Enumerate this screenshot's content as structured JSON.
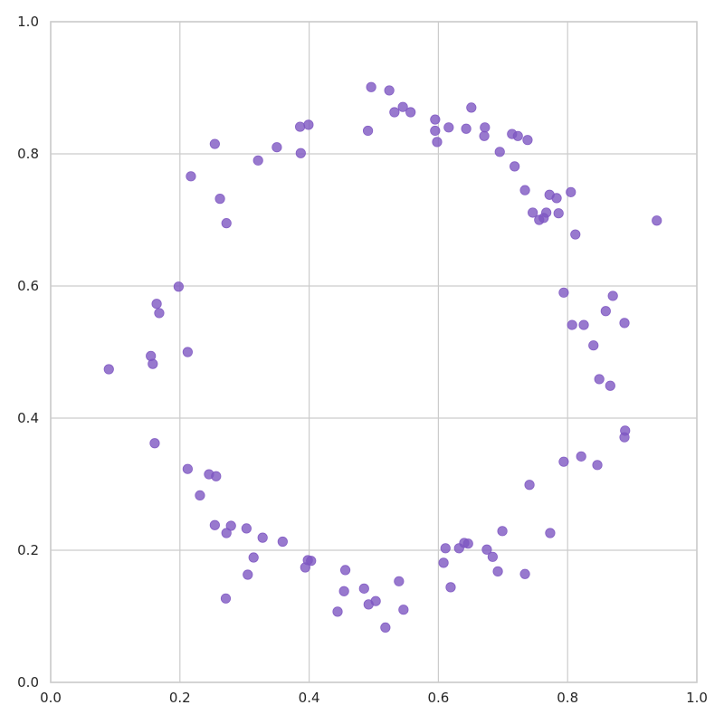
{
  "chart_data": {
    "type": "scatter",
    "title": "",
    "xlabel": "",
    "ylabel": "",
    "xlim": [
      0.0,
      1.0
    ],
    "ylim": [
      0.0,
      1.0
    ],
    "grid": true,
    "legend": null,
    "marker_color": "#7e57c2",
    "marker_alpha": 0.8,
    "x_ticks": [
      "0.0",
      "0.2",
      "0.4",
      "0.6",
      "0.8",
      "1.0"
    ],
    "y_ticks": [
      "0.0",
      "0.2",
      "0.4",
      "0.6",
      "0.8",
      "1.0"
    ],
    "points": [
      [
        0.496,
        0.901
      ],
      [
        0.524,
        0.896
      ],
      [
        0.545,
        0.871
      ],
      [
        0.532,
        0.863
      ],
      [
        0.557,
        0.863
      ],
      [
        0.595,
        0.852
      ],
      [
        0.595,
        0.835
      ],
      [
        0.598,
        0.818
      ],
      [
        0.616,
        0.84
      ],
      [
        0.643,
        0.838
      ],
      [
        0.651,
        0.87
      ],
      [
        0.672,
        0.84
      ],
      [
        0.671,
        0.827
      ],
      [
        0.714,
        0.83
      ],
      [
        0.723,
        0.827
      ],
      [
        0.738,
        0.821
      ],
      [
        0.695,
        0.803
      ],
      [
        0.718,
        0.781
      ],
      [
        0.734,
        0.745
      ],
      [
        0.772,
        0.738
      ],
      [
        0.783,
        0.733
      ],
      [
        0.805,
        0.742
      ],
      [
        0.746,
        0.711
      ],
      [
        0.767,
        0.711
      ],
      [
        0.756,
        0.7
      ],
      [
        0.763,
        0.703
      ],
      [
        0.786,
        0.71
      ],
      [
        0.812,
        0.678
      ],
      [
        0.938,
        0.699
      ],
      [
        0.794,
        0.59
      ],
      [
        0.87,
        0.585
      ],
      [
        0.859,
        0.562
      ],
      [
        0.807,
        0.541
      ],
      [
        0.825,
        0.541
      ],
      [
        0.888,
        0.544
      ],
      [
        0.84,
        0.51
      ],
      [
        0.849,
        0.459
      ],
      [
        0.866,
        0.449
      ],
      [
        0.889,
        0.381
      ],
      [
        0.888,
        0.371
      ],
      [
        0.794,
        0.334
      ],
      [
        0.821,
        0.342
      ],
      [
        0.846,
        0.329
      ],
      [
        0.741,
        0.299
      ],
      [
        0.699,
        0.229
      ],
      [
        0.773,
        0.226
      ],
      [
        0.611,
        0.203
      ],
      [
        0.632,
        0.203
      ],
      [
        0.64,
        0.211
      ],
      [
        0.646,
        0.21
      ],
      [
        0.675,
        0.201
      ],
      [
        0.684,
        0.19
      ],
      [
        0.608,
        0.181
      ],
      [
        0.692,
        0.168
      ],
      [
        0.734,
        0.164
      ],
      [
        0.619,
        0.144
      ],
      [
        0.456,
        0.17
      ],
      [
        0.454,
        0.138
      ],
      [
        0.485,
        0.142
      ],
      [
        0.539,
        0.153
      ],
      [
        0.492,
        0.118
      ],
      [
        0.503,
        0.123
      ],
      [
        0.444,
        0.107
      ],
      [
        0.546,
        0.11
      ],
      [
        0.518,
        0.083
      ],
      [
        0.212,
        0.323
      ],
      [
        0.245,
        0.315
      ],
      [
        0.256,
        0.312
      ],
      [
        0.231,
        0.283
      ],
      [
        0.254,
        0.238
      ],
      [
        0.279,
        0.237
      ],
      [
        0.272,
        0.226
      ],
      [
        0.303,
        0.233
      ],
      [
        0.328,
        0.219
      ],
      [
        0.359,
        0.213
      ],
      [
        0.314,
        0.189
      ],
      [
        0.305,
        0.163
      ],
      [
        0.271,
        0.127
      ],
      [
        0.398,
        0.185
      ],
      [
        0.403,
        0.184
      ],
      [
        0.394,
        0.174
      ],
      [
        0.198,
        0.599
      ],
      [
        0.164,
        0.573
      ],
      [
        0.168,
        0.559
      ],
      [
        0.212,
        0.5
      ],
      [
        0.155,
        0.494
      ],
      [
        0.158,
        0.482
      ],
      [
        0.09,
        0.474
      ],
      [
        0.161,
        0.362
      ],
      [
        0.254,
        0.815
      ],
      [
        0.217,
        0.766
      ],
      [
        0.262,
        0.732
      ],
      [
        0.272,
        0.695
      ],
      [
        0.321,
        0.79
      ],
      [
        0.35,
        0.81
      ],
      [
        0.386,
        0.841
      ],
      [
        0.399,
        0.844
      ],
      [
        0.387,
        0.801
      ],
      [
        0.491,
        0.835
      ]
    ]
  }
}
